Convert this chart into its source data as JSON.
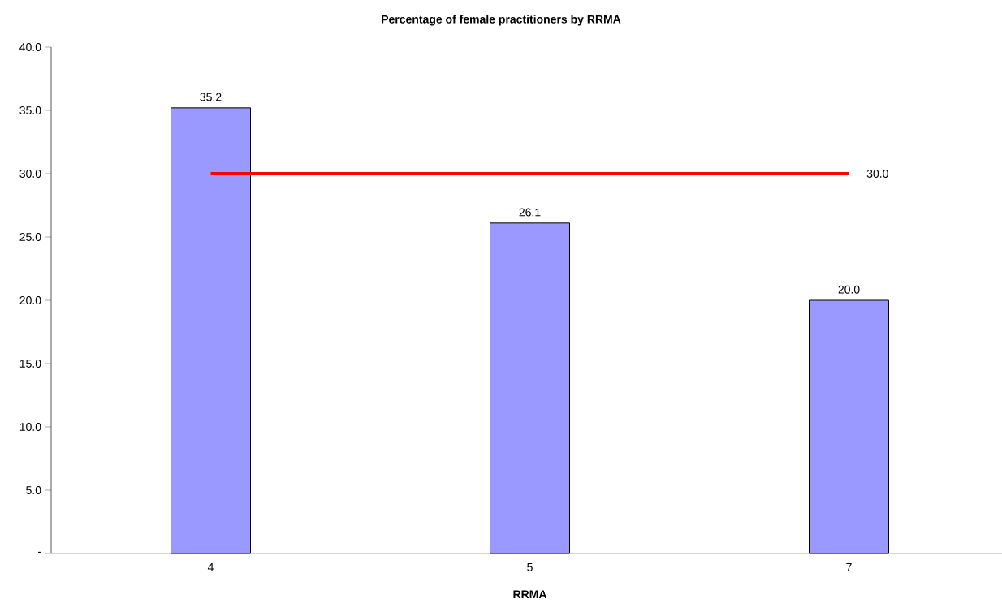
{
  "chart_data": {
    "type": "bar",
    "title": "Percentage of female practitioners by RRMA",
    "xlabel": "RRMA",
    "categories": [
      "4",
      "5",
      "7"
    ],
    "series": [
      {
        "color": "#9999ff",
        "values": [
          35.2,
          26.1,
          20.0
        ],
        "value_labels": [
          "35.2",
          "26.1",
          "20.0"
        ]
      },
      {
        "type": "line",
        "color": "#ff0000",
        "values": [
          30.0,
          30.0,
          30.0
        ],
        "value_labels": [
          null,
          null,
          "30.0"
        ],
        "marker": "none",
        "line_style": "solid"
      }
    ],
    "ylim": [
      0,
      40
    ],
    "yticks": [
      {
        "value": 0,
        "label": "-"
      },
      {
        "value": 5,
        "label": "5.0"
      },
      {
        "value": 10,
        "label": "10.0"
      },
      {
        "value": 15,
        "label": "15.0"
      },
      {
        "value": 20,
        "label": "20.0"
      },
      {
        "value": 25,
        "label": "25.0"
      },
      {
        "value": 30,
        "label": "30.0"
      },
      {
        "value": 35,
        "label": "35.0"
      },
      {
        "value": 40,
        "label": "40.0"
      }
    ],
    "grid": false
  }
}
